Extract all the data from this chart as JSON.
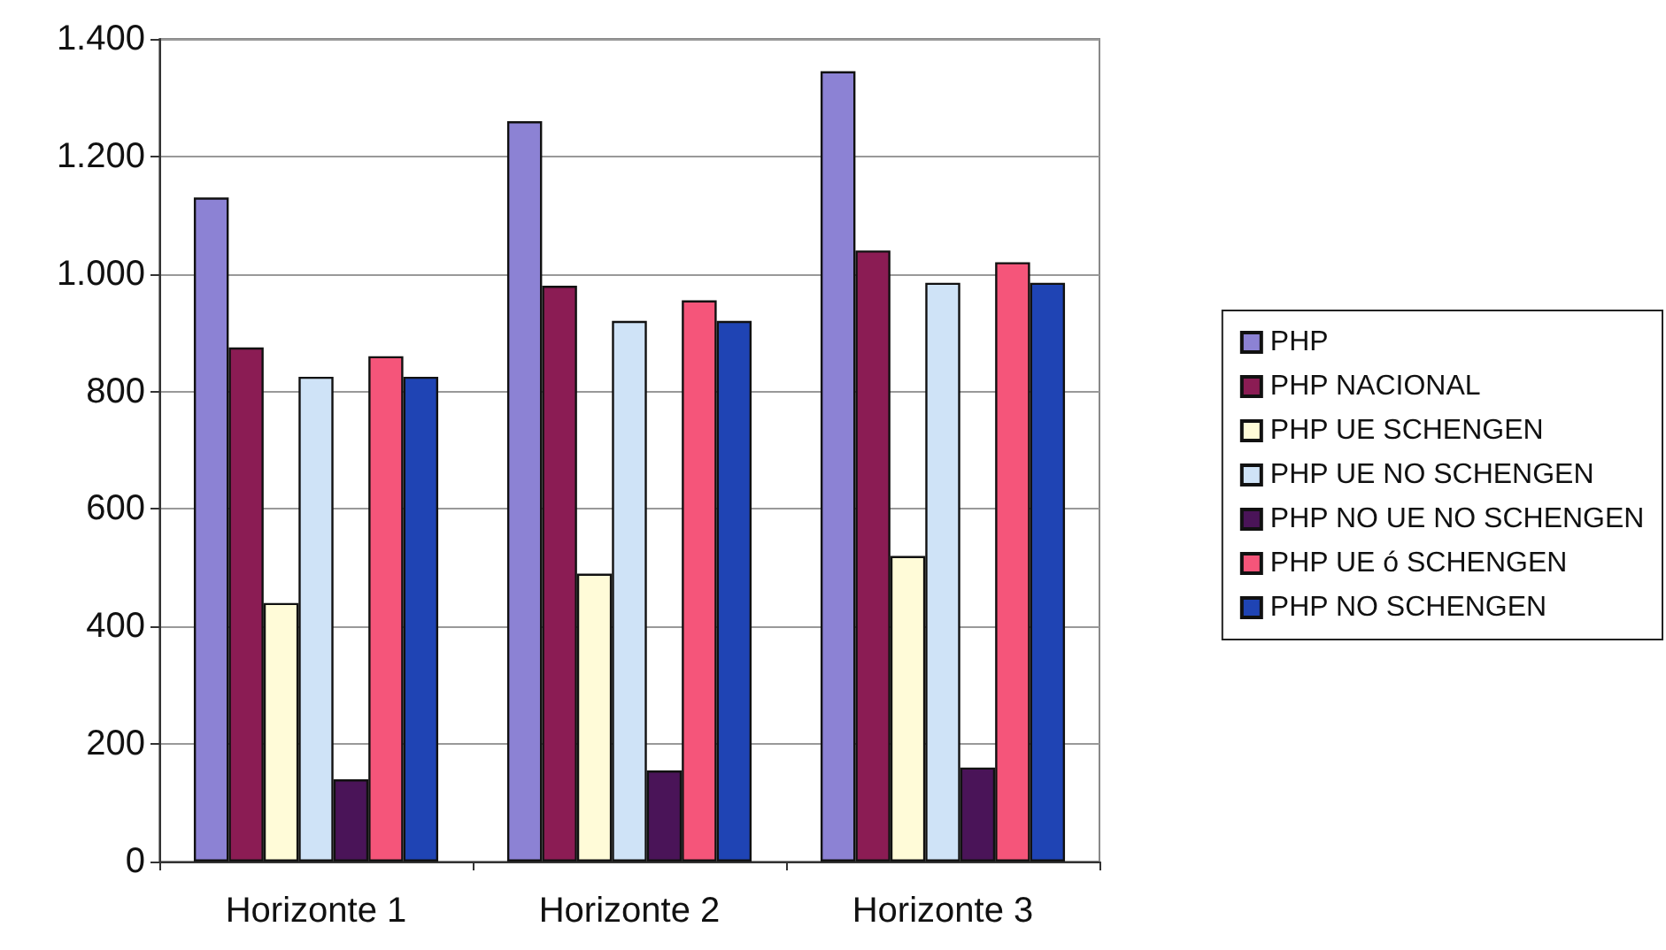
{
  "chart_data": {
    "type": "bar",
    "categories": [
      "Horizonte 1",
      "Horizonte 2",
      "Horizonte 3"
    ],
    "series": [
      {
        "name": "PHP",
        "color": "#8c82d4",
        "values": [
          1130,
          1260,
          1345
        ]
      },
      {
        "name": "PHP NACIONAL",
        "color": "#8b1c54",
        "values": [
          875,
          980,
          1040
        ]
      },
      {
        "name": "PHP UE SCHENGEN",
        "color": "#fffbd8",
        "values": [
          440,
          490,
          520
        ]
      },
      {
        "name": "PHP UE NO SCHENGEN",
        "color": "#cfe3f7",
        "values": [
          825,
          920,
          985
        ]
      },
      {
        "name": "PHP NO UE NO SCHENGEN",
        "color": "#4a1458",
        "values": [
          140,
          155,
          160
        ]
      },
      {
        "name": "PHP UE ó SCHENGEN",
        "color": "#f5557a",
        "values": [
          860,
          955,
          1020
        ]
      },
      {
        "name": "PHP NO SCHENGEN",
        "color": "#1f44b4",
        "values": [
          825,
          920,
          985
        ]
      }
    ],
    "ylim": [
      0,
      1400
    ],
    "yticks": [
      0,
      200,
      400,
      600,
      800,
      {
        "value": 1000,
        "label": "1.000"
      },
      {
        "value": 1200,
        "label": "1.200"
      },
      {
        "value": 1400,
        "label": "1.400"
      }
    ],
    "grid": "y",
    "legend": "right"
  }
}
